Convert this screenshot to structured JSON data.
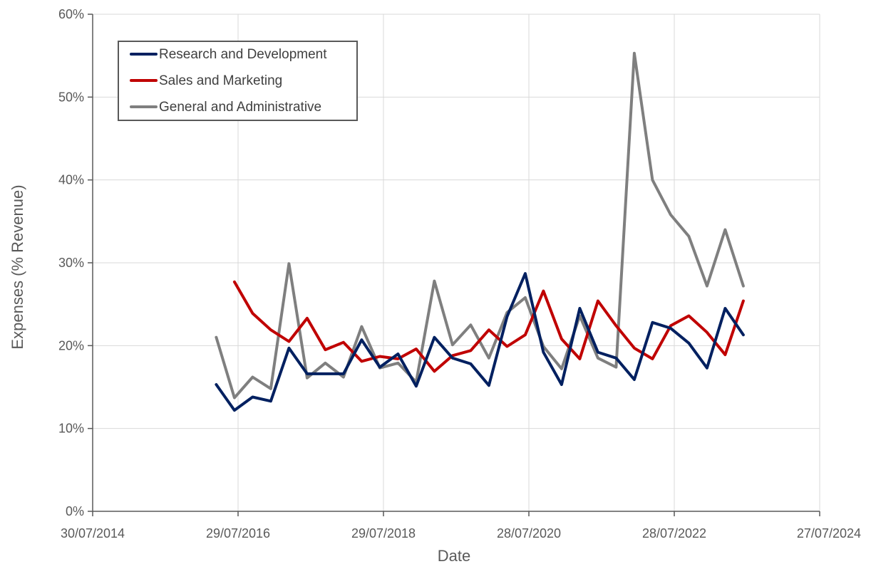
{
  "chart_data": {
    "type": "line",
    "title": "",
    "xlabel": "Date",
    "ylabel": "Expenses (% Revenue)",
    "ylim": [
      0,
      60
    ],
    "y_ticks": [
      0,
      10,
      20,
      30,
      40,
      50,
      60
    ],
    "y_tick_labels": [
      "0%",
      "10%",
      "20%",
      "30%",
      "40%",
      "50%",
      "60%"
    ],
    "x_ticks": [
      0,
      2,
      4,
      6,
      8,
      10
    ],
    "x_tick_labels": [
      "30/07/2014",
      "29/07/2016",
      "29/07/2018",
      "28/07/2020",
      "28/07/2022",
      "27/07/2024"
    ],
    "xlim": [
      0,
      10
    ],
    "x_unit": "years since 30/07/2014",
    "grid": true,
    "legend_position": "top-left",
    "x": [
      1.7,
      1.95,
      2.2,
      2.45,
      2.7,
      2.95,
      3.2,
      3.45,
      3.7,
      3.95,
      4.2,
      4.45,
      4.7,
      4.95,
      5.2,
      5.45,
      5.7,
      5.95,
      6.2,
      6.45,
      6.7,
      6.95,
      7.2,
      7.45,
      7.7,
      7.95,
      8.2,
      8.45,
      8.7,
      8.95
    ],
    "series": [
      {
        "name": "Research and Development",
        "color": "#002060",
        "values": [
          15.3,
          12.2,
          13.8,
          13.3,
          19.7,
          16.6,
          16.6,
          16.6,
          20.7,
          17.4,
          19.0,
          15.1,
          21.0,
          18.5,
          17.8,
          15.2,
          23.5,
          28.7,
          19.2,
          15.3,
          24.5,
          19.2,
          18.5,
          15.9,
          22.8,
          22.1,
          20.3,
          17.3,
          24.5,
          21.3
        ]
      },
      {
        "name": "Sales and Marketing",
        "color": "#C00000",
        "values": [
          null,
          27.7,
          23.9,
          21.9,
          20.5,
          23.3,
          19.5,
          20.4,
          18.1,
          18.7,
          18.4,
          19.6,
          16.9,
          18.8,
          19.4,
          21.9,
          19.9,
          21.3,
          26.6,
          20.8,
          18.4,
          25.4,
          22.4,
          19.7,
          18.4,
          22.4,
          23.6,
          21.6,
          18.9,
          25.4
        ]
      },
      {
        "name": "General and Administrative",
        "color": "#7F7F7F",
        "values": [
          21.0,
          13.7,
          16.2,
          14.8,
          29.9,
          16.1,
          17.9,
          16.2,
          22.3,
          17.3,
          17.9,
          15.6,
          27.8,
          20.1,
          22.5,
          18.5,
          24.0,
          25.8,
          19.9,
          17.2,
          23.6,
          18.5,
          17.4,
          55.3,
          40.0,
          35.8,
          33.2,
          27.2,
          34.0,
          27.2
        ]
      }
    ]
  }
}
